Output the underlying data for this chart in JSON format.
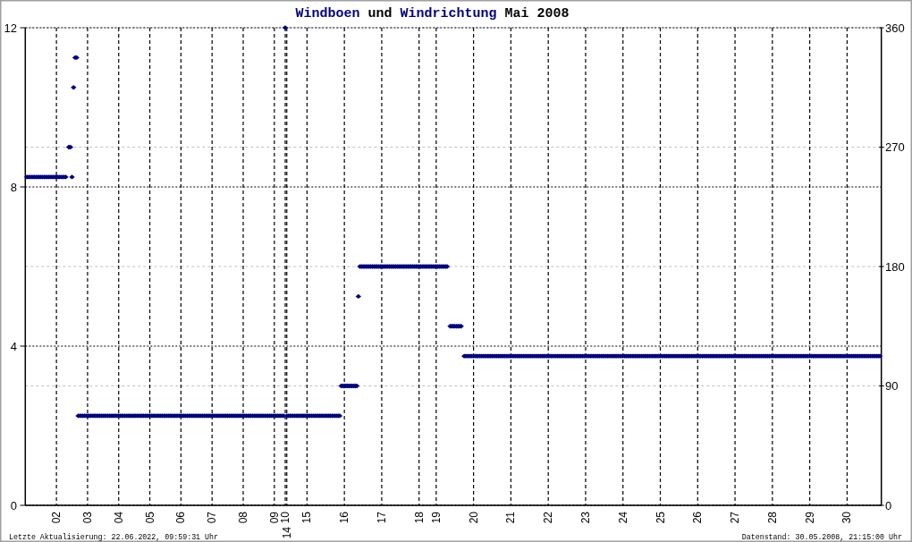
{
  "chart_data": {
    "type": "scatter",
    "title": "Windboen und Windrichtung Mai 2008",
    "annotations": [
      "Letzte Aktualisierung: 22.06.2022, 09:59:31 Uhr",
      "Datenstand: 30.05.2008, 21:15:00 Uhr"
    ],
    "categories": [
      null,
      null,
      null,
      null,
      null,
      null,
      null,
      null,
      null,
      null,
      null,
      null,
      null,
      null,
      null,
      null,
      null,
      null,
      null,
      null,
      "02",
      null,
      null,
      null,
      null,
      null,
      null,
      null,
      null,
      null,
      null,
      null,
      null,
      null,
      null,
      null,
      null,
      null,
      null,
      null,
      "03",
      null,
      null,
      null,
      null,
      null,
      null,
      null,
      null,
      null,
      null,
      null,
      null,
      null,
      null,
      null,
      null,
      null,
      null,
      null,
      "04",
      null,
      null,
      null,
      null,
      null,
      null,
      null,
      null,
      null,
      null,
      null,
      null,
      null,
      null,
      null,
      null,
      null,
      null,
      null,
      "05",
      null,
      null,
      null,
      null,
      null,
      null,
      null,
      null,
      null,
      null,
      null,
      null,
      null,
      null,
      null,
      null,
      null,
      null,
      null,
      "06",
      null,
      null,
      null,
      null,
      null,
      null,
      null,
      null,
      null,
      null,
      null,
      null,
      null,
      null,
      null,
      null,
      null,
      null,
      null,
      "07",
      null,
      null,
      null,
      null,
      null,
      null,
      null,
      null,
      null,
      null,
      null,
      null,
      null,
      null,
      null,
      null,
      null,
      null,
      null,
      "08",
      null,
      null,
      null,
      null,
      null,
      null,
      null,
      null,
      null,
      null,
      null,
      null,
      null,
      null,
      null,
      null,
      null,
      null,
      null,
      "09",
      null,
      null,
      null,
      null,
      null,
      null,
      "10",
      "14",
      null,
      null,
      null,
      null,
      null,
      null,
      null,
      null,
      null,
      null,
      null,
      null,
      "15",
      null,
      null,
      null,
      null,
      null,
      null,
      null,
      null,
      null,
      null,
      null,
      null,
      null,
      null,
      null,
      null,
      null,
      null,
      null,
      null,
      null,
      null,
      null,
      "16",
      null,
      null,
      null,
      null,
      null,
      null,
      null,
      null,
      null,
      null,
      null,
      null,
      null,
      null,
      null,
      null,
      null,
      null,
      null,
      null,
      null,
      null,
      null,
      "17",
      null,
      null,
      null,
      null,
      null,
      null,
      null,
      null,
      null,
      null,
      null,
      null,
      null,
      null,
      null,
      null,
      null,
      null,
      null,
      null,
      null,
      null,
      null,
      "18",
      null,
      null,
      null,
      null,
      null,
      null,
      null,
      null,
      null,
      null,
      "19",
      null,
      null,
      null,
      null,
      null,
      null,
      null,
      null,
      null,
      null,
      null,
      null,
      null,
      null,
      null,
      null,
      null,
      null,
      null,
      null,
      null,
      null,
      null,
      "20",
      null,
      null,
      null,
      null,
      null,
      null,
      null,
      null,
      null,
      null,
      null,
      null,
      null,
      null,
      null,
      null,
      null,
      null,
      null,
      null,
      null,
      null,
      null,
      "21",
      null,
      null,
      null,
      null,
      null,
      null,
      null,
      null,
      null,
      null,
      null,
      null,
      null,
      null,
      null,
      null,
      null,
      null,
      null,
      null,
      null,
      null,
      null,
      "22",
      null,
      null,
      null,
      null,
      null,
      null,
      null,
      null,
      null,
      null,
      null,
      null,
      null,
      null,
      null,
      null,
      null,
      null,
      null,
      null,
      null,
      null,
      null,
      "23",
      null,
      null,
      null,
      null,
      null,
      null,
      null,
      null,
      null,
      null,
      null,
      null,
      null,
      null,
      null,
      null,
      null,
      null,
      null,
      null,
      null,
      null,
      null,
      "24",
      null,
      null,
      null,
      null,
      null,
      null,
      null,
      null,
      null,
      null,
      null,
      null,
      null,
      null,
      null,
      null,
      null,
      null,
      null,
      null,
      null,
      null,
      null,
      "25",
      null,
      null,
      null,
      null,
      null,
      null,
      null,
      null,
      null,
      null,
      null,
      null,
      null,
      null,
      null,
      null,
      null,
      null,
      null,
      null,
      null,
      null,
      null,
      "26",
      null,
      null,
      null,
      null,
      null,
      null,
      null,
      null,
      null,
      null,
      null,
      null,
      null,
      null,
      null,
      null,
      null,
      null,
      null,
      null,
      null,
      null,
      null,
      "27",
      null,
      null,
      null,
      null,
      null,
      null,
      null,
      null,
      null,
      null,
      null,
      null,
      null,
      null,
      null,
      null,
      null,
      null,
      null,
      null,
      null,
      null,
      null,
      "28",
      null,
      null,
      null,
      null,
      null,
      null,
      null,
      null,
      null,
      null,
      null,
      null,
      null,
      null,
      null,
      null,
      null,
      null,
      null,
      null,
      null,
      null,
      null,
      "29",
      null,
      null,
      null,
      null,
      null,
      null,
      null,
      null,
      null,
      null,
      null,
      null,
      null,
      null,
      null,
      null,
      null,
      null,
      null,
      null,
      null,
      null,
      null,
      "30",
      null,
      null,
      null,
      null,
      null,
      null,
      null,
      null,
      null,
      null,
      null,
      null,
      null,
      null,
      null,
      null,
      null,
      null,
      null,
      null,
      null,
      null
    ],
    "ylim": [
      0,
      12
    ],
    "yticks": [
      0,
      4,
      8,
      12
    ],
    "y2lim": [
      0,
      360
    ],
    "y2ticks": [
      0,
      90,
      180,
      270,
      360
    ],
    "grid": true,
    "marker": "diamond",
    "series": [
      {
        "color": "#000080",
        "axis": "y2",
        "values": [
          null,
          247.5,
          247.5,
          247.5,
          247.5,
          247.5,
          247.5,
          247.5,
          247.5,
          247.5,
          247.5,
          247.5,
          247.5,
          247.5,
          247.5,
          247.5,
          247.5,
          247.5,
          247.5,
          247.5,
          247.5,
          247.5,
          247.5,
          247.5,
          247.5,
          247.5,
          247.5,
          null,
          270,
          270,
          247.5,
          315,
          337.5,
          337.5,
          67.5,
          67.5,
          67.5,
          67.5,
          67.5,
          67.5,
          67.5,
          67.5,
          67.5,
          67.5,
          67.5,
          67.5,
          67.5,
          67.5,
          67.5,
          67.5,
          67.5,
          67.5,
          67.5,
          67.5,
          67.5,
          67.5,
          67.5,
          67.5,
          67.5,
          67.5,
          67.5,
          67.5,
          67.5,
          67.5,
          67.5,
          67.5,
          67.5,
          67.5,
          67.5,
          67.5,
          67.5,
          67.5,
          67.5,
          67.5,
          67.5,
          67.5,
          67.5,
          67.5,
          67.5,
          67.5,
          67.5,
          67.5,
          67.5,
          67.5,
          67.5,
          67.5,
          67.5,
          67.5,
          67.5,
          67.5,
          67.5,
          67.5,
          67.5,
          67.5,
          67.5,
          67.5,
          67.5,
          67.5,
          67.5,
          67.5,
          67.5,
          67.5,
          67.5,
          67.5,
          67.5,
          67.5,
          67.5,
          67.5,
          67.5,
          67.5,
          67.5,
          67.5,
          67.5,
          67.5,
          67.5,
          67.5,
          67.5,
          67.5,
          67.5,
          67.5,
          67.5,
          67.5,
          67.5,
          67.5,
          67.5,
          67.5,
          67.5,
          67.5,
          67.5,
          67.5,
          67.5,
          67.5,
          67.5,
          67.5,
          67.5,
          67.5,
          67.5,
          67.5,
          67.5,
          67.5,
          67.5,
          67.5,
          67.5,
          67.5,
          67.5,
          67.5,
          67.5,
          67.5,
          67.5,
          67.5,
          67.5,
          67.5,
          67.5,
          67.5,
          67.5,
          67.5,
          67.5,
          67.5,
          67.5,
          67.5,
          67.5,
          67.5,
          67.5,
          67.5,
          67.5,
          67.5,
          67.5,
          360,
          67.5,
          67.5,
          67.5,
          67.5,
          67.5,
          67.5,
          67.5,
          67.5,
          67.5,
          67.5,
          67.5,
          67.5,
          67.5,
          67.5,
          67.5,
          67.5,
          67.5,
          67.5,
          67.5,
          67.5,
          67.5,
          67.5,
          67.5,
          67.5,
          67.5,
          67.5,
          67.5,
          67.5,
          67.5,
          67.5,
          67.5,
          67.5,
          67.5,
          67.5,
          67.5,
          90,
          90,
          90,
          90,
          90,
          90,
          90,
          90,
          90,
          90,
          90,
          157.5,
          180,
          180,
          180,
          180,
          180,
          180,
          180,
          180,
          180,
          180,
          180,
          180,
          180,
          180,
          180,
          180,
          180,
          180,
          180,
          180,
          180,
          180,
          180,
          180,
          180,
          180,
          180,
          180,
          180,
          180,
          180,
          180,
          180,
          180,
          180,
          180,
          180,
          180,
          180,
          180,
          180,
          180,
          180,
          180,
          180,
          180,
          180,
          180,
          180,
          180,
          180,
          180,
          180,
          180,
          180,
          180,
          180,
          null,
          135,
          135,
          135,
          135,
          135,
          135,
          135,
          135,
          null,
          112.5,
          112.5,
          112.5,
          112.5,
          112.5,
          112.5,
          112.5,
          112.5,
          112.5,
          112.5,
          112.5,
          112.5,
          112.5,
          112.5,
          112.5,
          112.5,
          112.5,
          112.5,
          112.5,
          112.5,
          112.5,
          112.5,
          112.5,
          112.5,
          112.5,
          112.5,
          112.5,
          112.5,
          112.5,
          112.5,
          112.5,
          112.5,
          112.5,
          112.5,
          112.5,
          112.5,
          112.5,
          112.5,
          112.5,
          112.5,
          112.5,
          112.5,
          112.5,
          112.5,
          112.5,
          112.5,
          112.5,
          112.5,
          112.5,
          112.5,
          112.5,
          112.5,
          112.5,
          112.5,
          112.5,
          112.5,
          112.5,
          112.5,
          112.5,
          112.5,
          112.5,
          112.5,
          112.5,
          112.5,
          112.5,
          112.5,
          112.5,
          112.5,
          112.5,
          112.5,
          112.5,
          112.5,
          112.5,
          112.5,
          112.5,
          112.5,
          112.5,
          112.5,
          112.5,
          112.5,
          112.5,
          112.5,
          112.5,
          112.5,
          112.5,
          112.5,
          112.5,
          112.5,
          112.5,
          112.5,
          112.5,
          112.5,
          112.5,
          112.5,
          112.5,
          112.5,
          112.5,
          112.5,
          112.5,
          112.5,
          112.5,
          112.5,
          112.5,
          112.5,
          112.5,
          112.5,
          112.5,
          112.5,
          112.5,
          112.5,
          112.5,
          112.5,
          112.5,
          112.5,
          112.5,
          112.5,
          112.5,
          112.5,
          112.5,
          112.5,
          112.5,
          112.5,
          112.5,
          112.5,
          112.5,
          112.5,
          112.5,
          112.5,
          112.5,
          112.5,
          112.5,
          112.5,
          112.5,
          112.5,
          112.5,
          112.5,
          112.5,
          112.5,
          112.5,
          112.5,
          112.5,
          112.5,
          112.5,
          112.5,
          112.5,
          112.5,
          112.5,
          112.5,
          112.5,
          112.5,
          112.5,
          112.5,
          112.5,
          112.5,
          112.5,
          112.5,
          112.5,
          112.5,
          112.5,
          112.5,
          112.5,
          112.5,
          112.5,
          112.5,
          112.5,
          112.5,
          112.5,
          112.5,
          112.5,
          112.5,
          112.5,
          112.5,
          112.5,
          112.5,
          112.5,
          112.5,
          112.5,
          112.5,
          112.5,
          112.5,
          112.5,
          112.5,
          112.5,
          112.5,
          112.5,
          112.5,
          112.5,
          112.5,
          112.5,
          112.5,
          112.5,
          112.5,
          112.5,
          112.5,
          112.5,
          112.5,
          112.5,
          112.5,
          112.5,
          112.5,
          112.5,
          112.5,
          112.5,
          112.5,
          112.5,
          112.5,
          112.5,
          112.5,
          112.5,
          112.5,
          112.5,
          112.5,
          112.5,
          112.5,
          112.5,
          112.5,
          112.5,
          112.5,
          112.5,
          112.5,
          112.5,
          112.5,
          112.5,
          112.5,
          112.5,
          112.5,
          112.5,
          112.5,
          112.5,
          112.5,
          112.5,
          112.5,
          112.5,
          112.5,
          112.5,
          112.5,
          112.5,
          112.5,
          112.5,
          112.5,
          112.5,
          112.5,
          112.5,
          112.5,
          112.5,
          112.5,
          112.5,
          112.5,
          112.5,
          112.5,
          112.5,
          112.5,
          112.5,
          112.5,
          112.5,
          112.5,
          112.5,
          112.5,
          112.5,
          112.5,
          112.5,
          112.5,
          112.5,
          112.5,
          112.5,
          112.5,
          112.5,
          112.5,
          null
        ]
      }
    ]
  }
}
